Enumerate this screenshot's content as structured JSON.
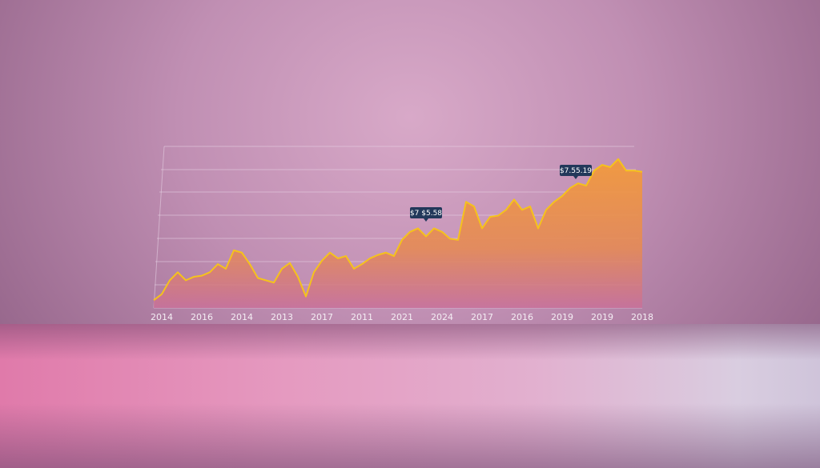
{
  "chart_data": {
    "type": "area",
    "categories": [
      null,
      "2014",
      null,
      null,
      null,
      null,
      "2016",
      null,
      null,
      null,
      null,
      "2014",
      null,
      null,
      null,
      null,
      "2013",
      null,
      null,
      null,
      null,
      "2017",
      null,
      null,
      null,
      null,
      "2011",
      null,
      null,
      null,
      null,
      "2021",
      null,
      null,
      null,
      null,
      "2024",
      null,
      null,
      null,
      null,
      "2017",
      null,
      null,
      null,
      null,
      "2016",
      null,
      null,
      null,
      null,
      "2019",
      null,
      null,
      null,
      null,
      "2019",
      null,
      null,
      null,
      null,
      "2018"
    ],
    "values": [
      0.34,
      0.6,
      1.2,
      1.55,
      1.2,
      1.35,
      1.4,
      1.55,
      1.9,
      1.7,
      2.5,
      2.4,
      1.9,
      1.3,
      1.2,
      1.1,
      1.7,
      1.95,
      1.35,
      0.5,
      1.55,
      2.05,
      2.4,
      2.15,
      2.25,
      1.7,
      1.9,
      2.15,
      2.3,
      2.4,
      2.25,
      2.95,
      3.3,
      3.45,
      3.1,
      3.45,
      3.3,
      3.0,
      2.95,
      4.6,
      4.4,
      3.45,
      3.95,
      4.0,
      4.25,
      4.7,
      4.25,
      4.4,
      3.45,
      4.25,
      4.6,
      4.85,
      5.2,
      5.4,
      5.3,
      5.95,
      6.2,
      6.1,
      6.45,
      5.95,
      5.95,
      5.9
    ],
    "color": "#f5c21c",
    "ylim": [
      0,
      7
    ],
    "annotations": [
      "$7 $5.58",
      "$7.55.19"
    ]
  }
}
